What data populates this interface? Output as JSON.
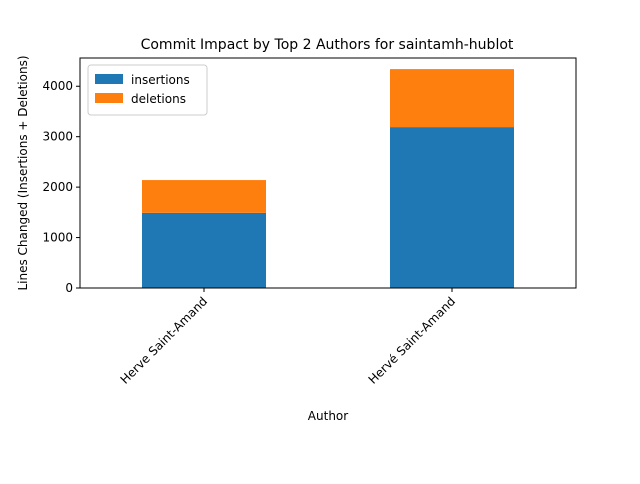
{
  "chart_data": {
    "type": "bar",
    "stacked": true,
    "title": "Commit Impact by Top 2 Authors for saintamh-hublot",
    "xlabel": "Author",
    "ylabel": "Lines Changed (Insertions + Deletions)",
    "categories": [
      "Herve Saint-Amand",
      "Hervé Saint-Amand"
    ],
    "series": [
      {
        "name": "insertions",
        "values": [
          1490,
          3190
        ],
        "color": "#1f77b4"
      },
      {
        "name": "deletions",
        "values": [
          650,
          1150
        ],
        "color": "#ff7f0e"
      }
    ],
    "ylim": [
      0,
      4560
    ],
    "yticks": [
      0,
      1000,
      2000,
      3000,
      4000
    ],
    "grid": false,
    "legend_position": "top-left"
  }
}
